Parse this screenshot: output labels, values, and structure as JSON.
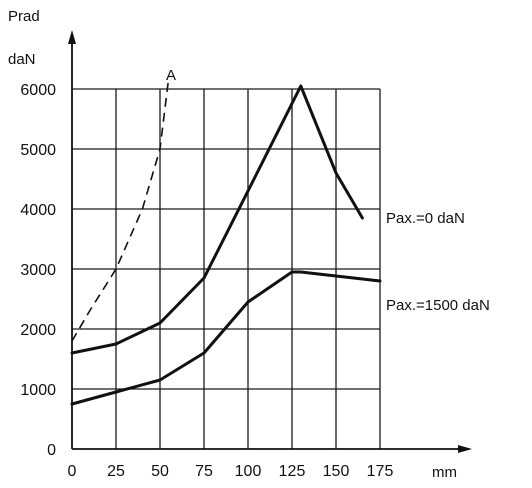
{
  "chart_data": {
    "type": "line",
    "xlabel": "mm",
    "ylabel_line1": "Prad",
    "ylabel_line2": "daN",
    "xlim": [
      0,
      175
    ],
    "ylim": [
      0,
      6000
    ],
    "grid": true,
    "x_ticks": [
      "0",
      "25",
      "50",
      "75",
      "100",
      "125",
      "150",
      "175"
    ],
    "y_ticks": [
      "0",
      "1000",
      "2000",
      "3000",
      "4000",
      "5000",
      "6000"
    ],
    "series": [
      {
        "name": "Pax.=0 daN",
        "style": "solid",
        "x": [
          0,
          25,
          50,
          75,
          100,
          130,
          150,
          165
        ],
        "y": [
          1600,
          1750,
          2100,
          2850,
          4300,
          6050,
          4600,
          3850
        ]
      },
      {
        "name": "Pax.=1500 daN",
        "style": "solid",
        "x": [
          0,
          25,
          50,
          75,
          100,
          125,
          130,
          175
        ],
        "y": [
          750,
          950,
          1150,
          1600,
          2450,
          2950,
          2950,
          2800
        ]
      },
      {
        "name": "A",
        "style": "dashed",
        "x": [
          0,
          10,
          25,
          40,
          50,
          55
        ],
        "y": [
          1800,
          2300,
          3000,
          4000,
          5000,
          6200
        ]
      }
    ]
  }
}
